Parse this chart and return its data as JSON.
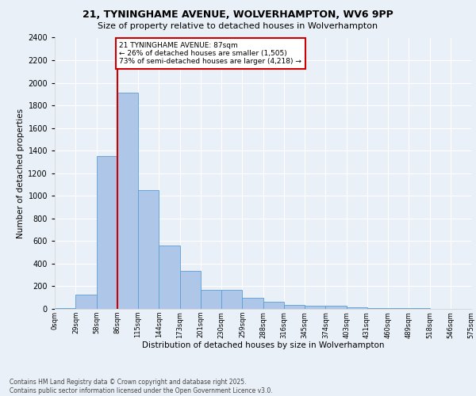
{
  "title1": "21, TYNINGHAME AVENUE, WOLVERHAMPTON, WV6 9PP",
  "title2": "Size of property relative to detached houses in Wolverhampton",
  "xlabel": "Distribution of detached houses by size in Wolverhampton",
  "ylabel": "Number of detached properties",
  "footer1": "Contains HM Land Registry data © Crown copyright and database right 2025.",
  "footer2": "Contains public sector information licensed under the Open Government Licence v3.0.",
  "annotation_title": "21 TYNINGHAME AVENUE: 87sqm",
  "annotation_line1": "← 26% of detached houses are smaller (1,505)",
  "annotation_line2": "73% of semi-detached houses are larger (4,218) →",
  "property_size": 87,
  "bin_edges": [
    0,
    29,
    58,
    86,
    115,
    144,
    173,
    201,
    230,
    259,
    288,
    316,
    345,
    374,
    403,
    431,
    460,
    489,
    518,
    546,
    575
  ],
  "bar_heights": [
    10,
    125,
    1350,
    1910,
    1050,
    560,
    335,
    165,
    170,
    100,
    60,
    35,
    30,
    25,
    15,
    10,
    5,
    5,
    3,
    2
  ],
  "bar_color": "#aec6e8",
  "bar_edge_color": "#5a9fd4",
  "vline_color": "#cc0000",
  "vline_x": 87,
  "ylim": [
    0,
    2400
  ],
  "yticks": [
    0,
    200,
    400,
    600,
    800,
    1000,
    1200,
    1400,
    1600,
    1800,
    2000,
    2200,
    2400
  ],
  "tick_labels": [
    "0sqm",
    "29sqm",
    "58sqm",
    "86sqm",
    "115sqm",
    "144sqm",
    "173sqm",
    "201sqm",
    "230sqm",
    "259sqm",
    "288sqm",
    "316sqm",
    "345sqm",
    "374sqm",
    "403sqm",
    "431sqm",
    "460sqm",
    "489sqm",
    "518sqm",
    "546sqm",
    "575sqm"
  ],
  "bg_color": "#eaf0f8",
  "grid_color": "#ffffff",
  "annotation_box_color": "#ffffff",
  "annotation_box_edge": "#cc0000",
  "fig_width": 6.0,
  "fig_height": 5.0,
  "fig_dpi": 100
}
